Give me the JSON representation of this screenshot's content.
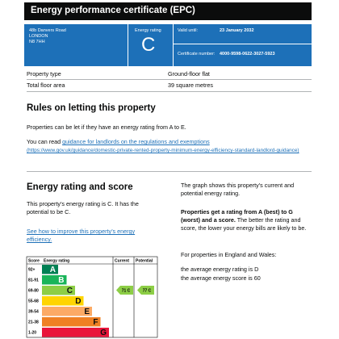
{
  "header": {
    "title": "Energy performance certificate (EPC)"
  },
  "summary": {
    "address": [
      "48b Danvers Road",
      "LONDON",
      "N8 7HH"
    ],
    "rating_label": "Energy rating",
    "rating": "C",
    "valid_label": "Valid until:",
    "valid_date": "23 January 2032",
    "certificate_label": "Certificate number:",
    "certificate_number": "4000-9598-0622-3027-5923"
  },
  "property": {
    "rows": [
      [
        "Property type",
        "Ground-floor flat"
      ],
      [
        "Total floor area",
        "39 square metres"
      ]
    ]
  },
  "letting": {
    "heading": "Rules on letting this property",
    "text": "Properties can be let if they have an energy rating from A to E.",
    "link_intro": "You can read ",
    "link": "guidance for landlords on the regulations and exemptions",
    "url": "(https://www.gov.uk/guidance/domestic-private-rented-property-minimum-energy-efficiency-standard-landlord-guidance)"
  },
  "rating_section": {
    "heading": "Energy rating and score",
    "text": "This property’s energy rating is C. It has the potential to be C.",
    "link": "See how to improve this property’s energy efficiency.",
    "graph_text": "The graph shows this property’s current and potential energy rating.",
    "bold_text": "Properties get a rating from A (best) to G (worst) and a score.",
    "explain_text": " The better the rating and score, the lower your energy bills are likely to be.",
    "average_intro": "For properties in England and Wales:",
    "average_rating": "the average energy rating is D",
    "average_score": "the average energy score is 60"
  },
  "chart": {
    "headers": [
      "Score",
      "Energy rating",
      "Current",
      "Potential"
    ],
    "bands": [
      {
        "score": "92+",
        "letter": "A",
        "color": "#008054"
      },
      {
        "score": "81-91",
        "letter": "B",
        "color": "#19b459"
      },
      {
        "score": "69-80",
        "letter": "C",
        "color": "#8dce46"
      },
      {
        "score": "55-68",
        "letter": "D",
        "color": "#ffd500"
      },
      {
        "score": "39-54",
        "letter": "E",
        "color": "#fcaa65"
      },
      {
        "score": "21-38",
        "letter": "F",
        "color": "#ef8023"
      },
      {
        "score": "1-20",
        "letter": "G",
        "color": "#e9153b"
      }
    ],
    "current": "71 C",
    "potential": "77 C"
  }
}
